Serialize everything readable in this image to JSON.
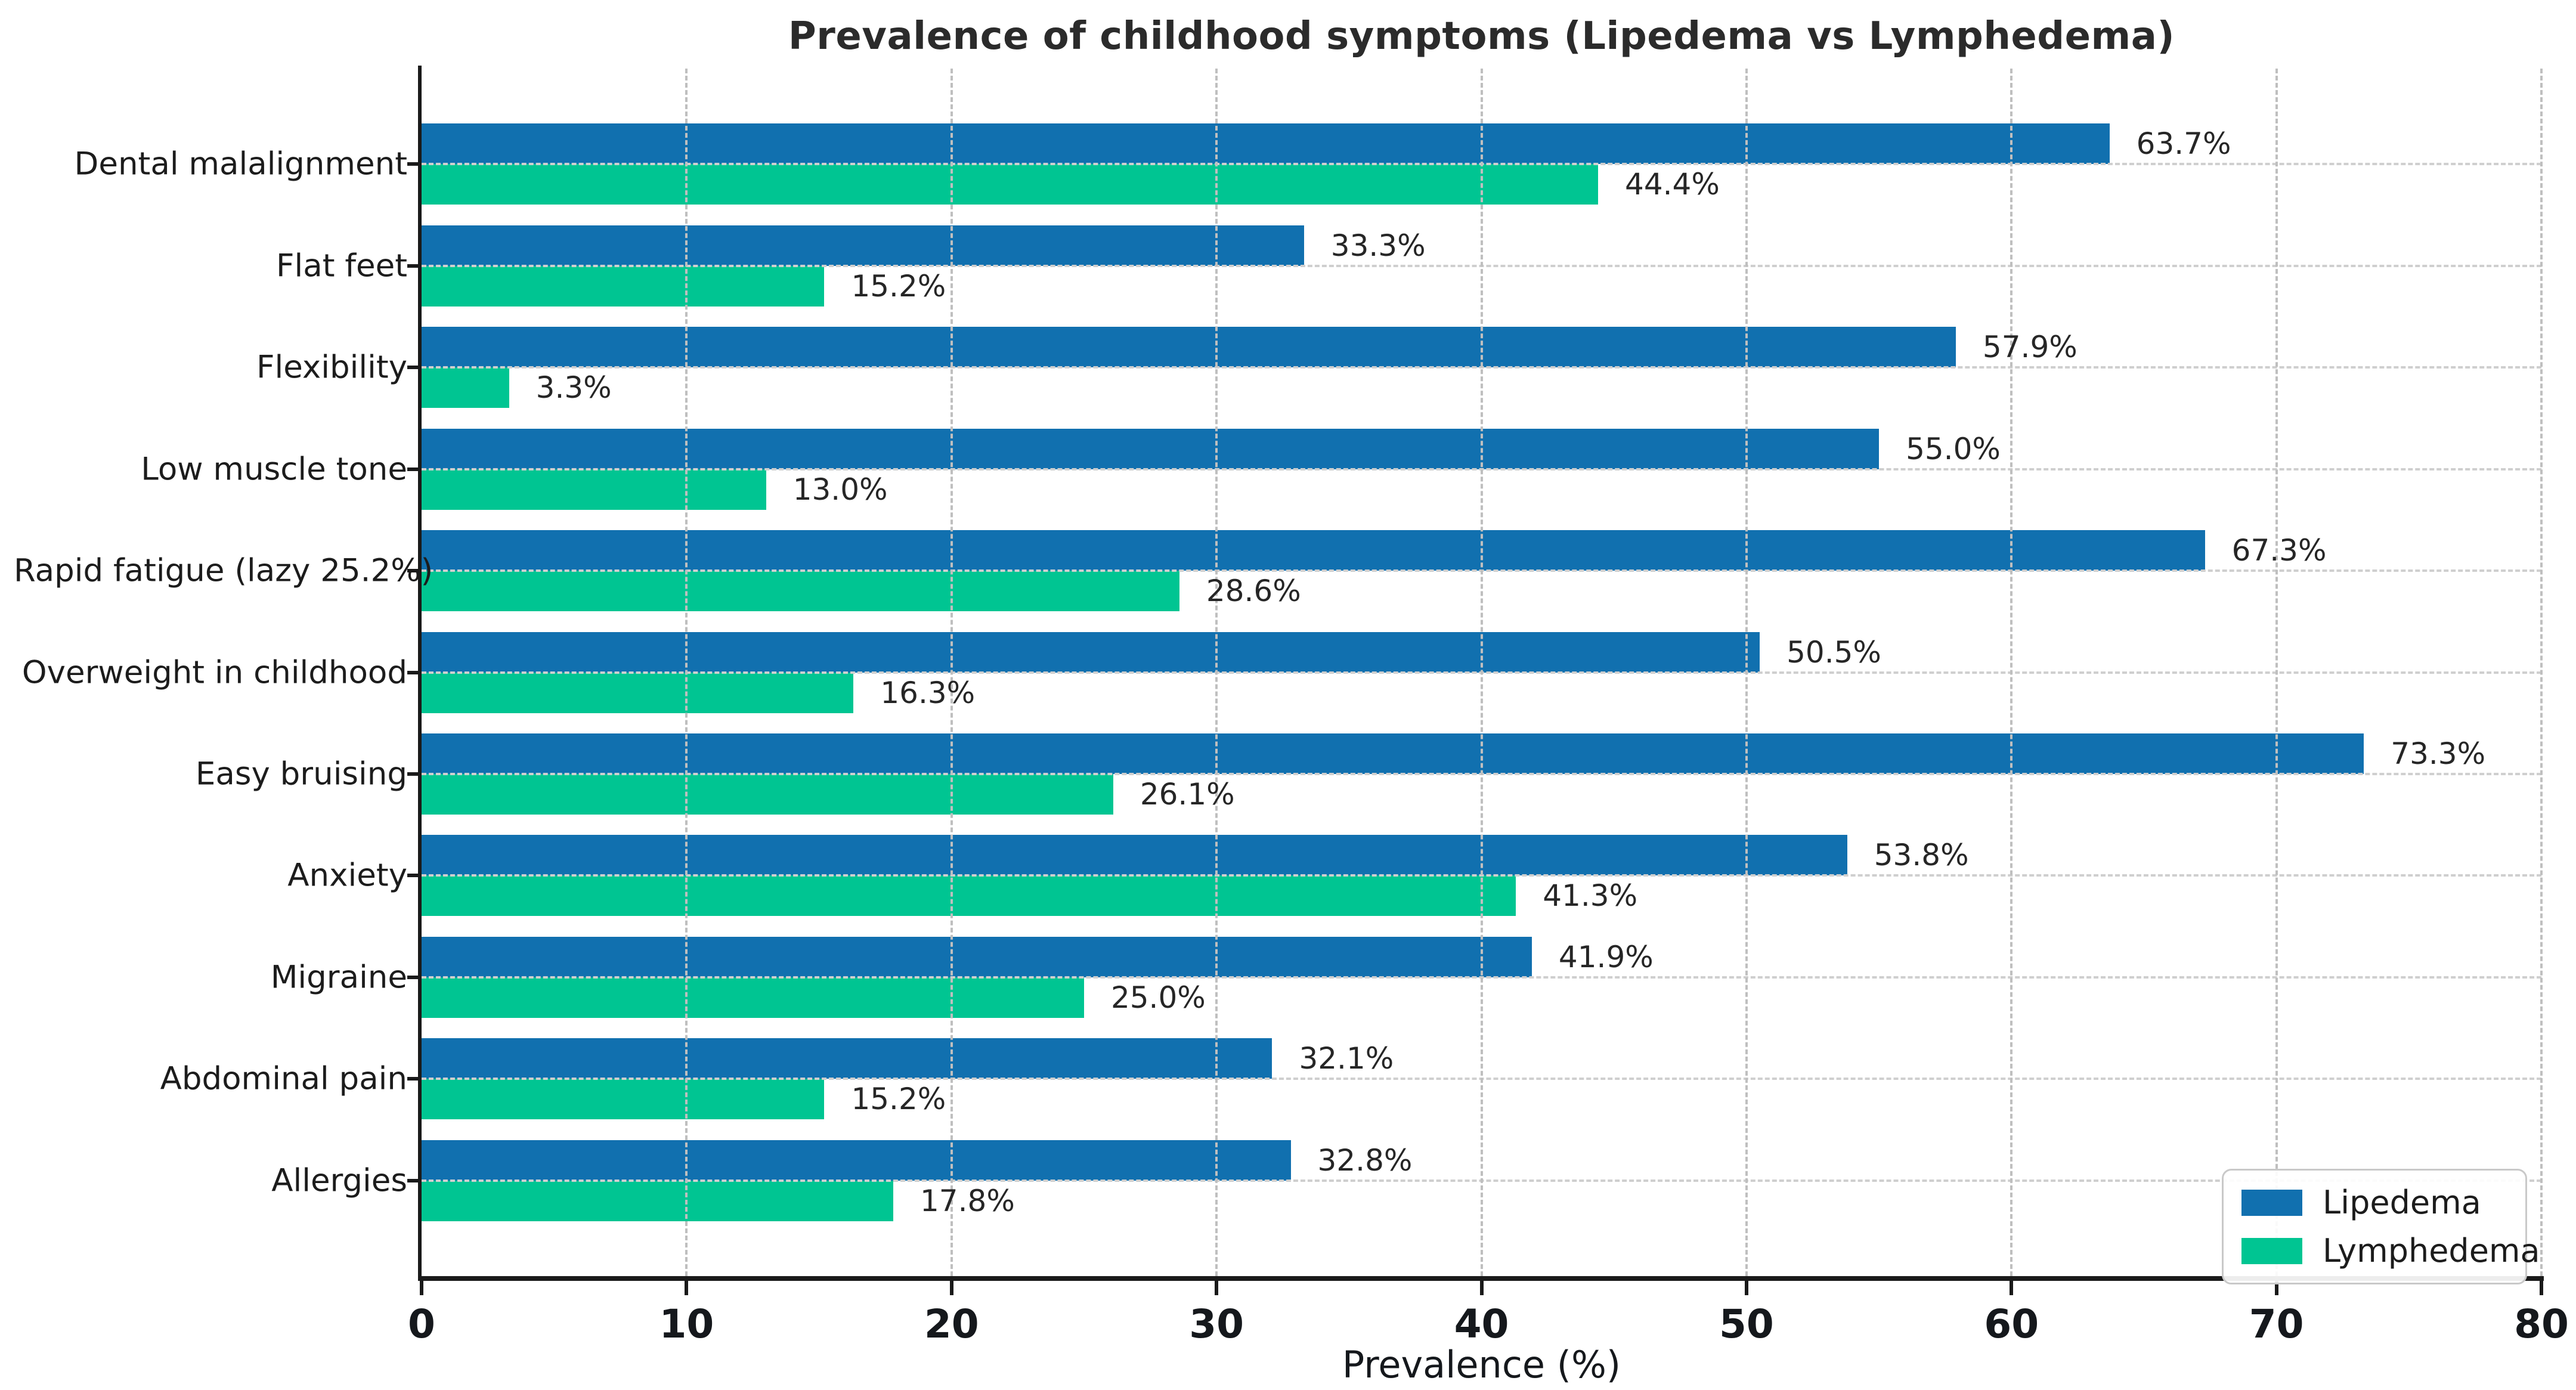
{
  "chart_data": {
    "type": "bar",
    "orientation": "horizontal",
    "title": "Prevalence of childhood symptoms (Lipedema vs Lymphedema)",
    "xlabel": "Prevalence (%)",
    "xlim": [
      0,
      80
    ],
    "xticks": [
      0,
      10,
      20,
      30,
      40,
      50,
      60,
      70,
      80
    ],
    "grid": {
      "style": "dashed",
      "color": "#bfbfbf",
      "drawn_over_bars": true
    },
    "legend": {
      "position": "lower right"
    },
    "categories": [
      "Dental malalignment",
      "Flat feet",
      "Flexibility",
      "Low muscle tone",
      "Rapid fatigue (lazy 25.2%)",
      "Overweight in childhood",
      "Easy bruising",
      "Anxiety",
      "Migraine",
      "Abdominal pain",
      "Allergies"
    ],
    "series": [
      {
        "name": "Lipedema",
        "color": "#1170af",
        "values": [
          63.7,
          33.3,
          57.9,
          55.0,
          67.3,
          50.5,
          73.3,
          53.8,
          41.9,
          32.1,
          32.8
        ]
      },
      {
        "name": "Lymphedema",
        "color": "#00c592",
        "values": [
          44.4,
          15.2,
          3.3,
          13.0,
          28.6,
          16.3,
          26.1,
          41.3,
          25.0,
          15.2,
          17.8
        ]
      }
    ],
    "value_label_suffix": "%"
  },
  "colors": {
    "background": "#ffffff",
    "spine": "#1a1a1a",
    "grid_vertical": "#bfbfbf",
    "grid_horizontal": "#cfcfcf",
    "text": "#1c1c1c"
  }
}
